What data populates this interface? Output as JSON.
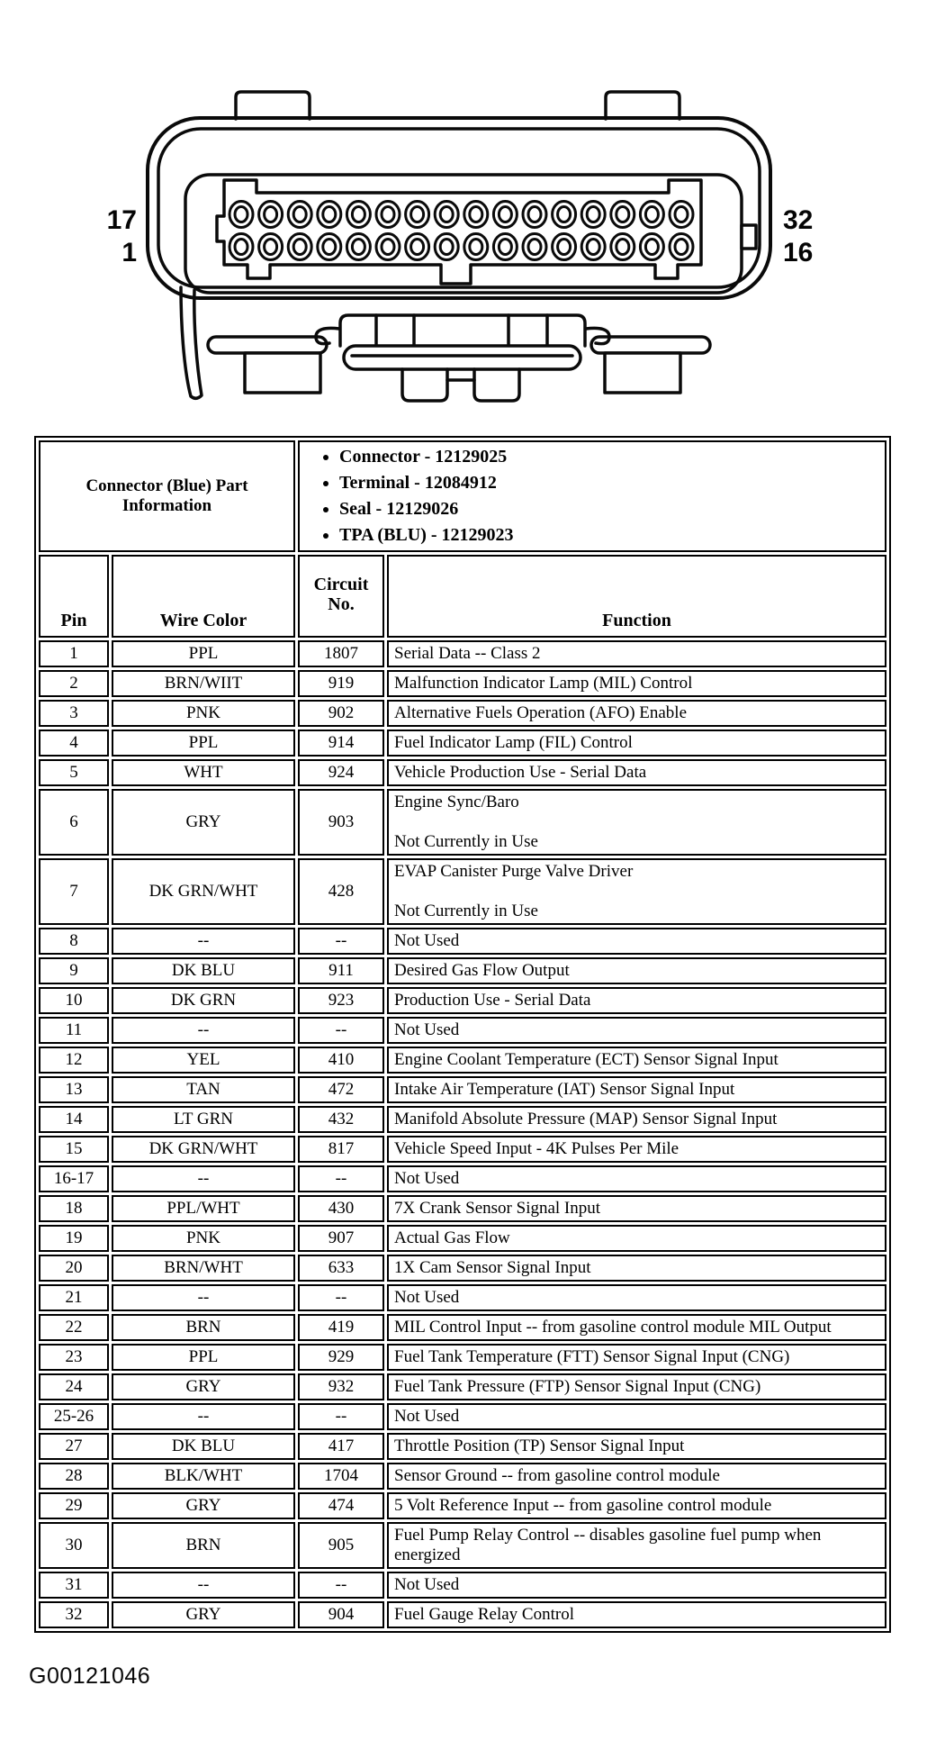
{
  "diagram": {
    "description": "32-pin connector face view, two rows of 16 cavities",
    "pins_per_row": 16,
    "pin_labels": {
      "top_left": "17",
      "bottom_left": "1",
      "top_right": "32",
      "bottom_right": "16"
    }
  },
  "part_info": {
    "title": "Connector (Blue) Part Information",
    "bullets": [
      "Connector - 12129025",
      "Terminal - 12084912",
      "Seal - 12129026",
      "TPA (BLU) - 12129023"
    ]
  },
  "table": {
    "headers": {
      "pin": "Pin",
      "wire_color": "Wire Color",
      "circuit": "Circuit No.",
      "function": "Function"
    },
    "rows": [
      {
        "pin": "1",
        "wire": "PPL",
        "circuit": "1807",
        "function": "Serial Data -- Class 2"
      },
      {
        "pin": "2",
        "wire": "BRN/WIIT",
        "circuit": "919",
        "function": "Malfunction Indicator Lamp (MIL) Control"
      },
      {
        "pin": "3",
        "wire": "PNK",
        "circuit": "902",
        "function": "Alternative Fuels Operation (AFO) Enable"
      },
      {
        "pin": "4",
        "wire": "PPL",
        "circuit": "914",
        "function": "Fuel Indicator Lamp (FIL) Control"
      },
      {
        "pin": "5",
        "wire": "WHT",
        "circuit": "924",
        "function": "Vehicle Production Use - Serial Data"
      },
      {
        "pin": "6",
        "wire": "GRY",
        "circuit": "903",
        "function": [
          "Engine Sync/Baro",
          "Not Currently in Use"
        ]
      },
      {
        "pin": "7",
        "wire": "DK GRN/WHT",
        "circuit": "428",
        "function": [
          "EVAP Canister Purge Valve Driver",
          "Not Currently in Use"
        ]
      },
      {
        "pin": "8",
        "wire": "--",
        "circuit": "--",
        "function": "Not Used"
      },
      {
        "pin": "9",
        "wire": "DK BLU",
        "circuit": "911",
        "function": "Desired Gas Flow Output"
      },
      {
        "pin": "10",
        "wire": "DK GRN",
        "circuit": "923",
        "function": "Production Use - Serial Data"
      },
      {
        "pin": "11",
        "wire": "--",
        "circuit": "--",
        "function": "Not Used"
      },
      {
        "pin": "12",
        "wire": "YEL",
        "circuit": "410",
        "function": "Engine Coolant Temperature (ECT) Sensor Signal Input"
      },
      {
        "pin": "13",
        "wire": "TAN",
        "circuit": "472",
        "function": "Intake Air Temperature (IAT) Sensor Signal Input"
      },
      {
        "pin": "14",
        "wire": "LT GRN",
        "circuit": "432",
        "function": "Manifold Absolute Pressure (MAP) Sensor Signal Input"
      },
      {
        "pin": "15",
        "wire": "DK GRN/WHT",
        "circuit": "817",
        "function": "Vehicle Speed Input - 4K Pulses Per Mile"
      },
      {
        "pin": "16-17",
        "wire": "--",
        "circuit": "--",
        "function": "Not Used"
      },
      {
        "pin": "18",
        "wire": "PPL/WHT",
        "circuit": "430",
        "function": "7X Crank Sensor Signal Input"
      },
      {
        "pin": "19",
        "wire": "PNK",
        "circuit": "907",
        "function": "Actual Gas Flow"
      },
      {
        "pin": "20",
        "wire": "BRN/WHT",
        "circuit": "633",
        "function": "1X Cam Sensor Signal Input"
      },
      {
        "pin": "21",
        "wire": "--",
        "circuit": "--",
        "function": "Not Used"
      },
      {
        "pin": "22",
        "wire": "BRN",
        "circuit": "419",
        "function": "MIL Control Input -- from gasoline control module MIL Output"
      },
      {
        "pin": "23",
        "wire": "PPL",
        "circuit": "929",
        "function": "Fuel Tank Temperature (FTT) Sensor Signal Input (CNG)"
      },
      {
        "pin": "24",
        "wire": "GRY",
        "circuit": "932",
        "function": "Fuel Tank Pressure (FTP) Sensor Signal Input (CNG)"
      },
      {
        "pin": "25-26",
        "wire": "--",
        "circuit": "--",
        "function": "Not Used"
      },
      {
        "pin": "27",
        "wire": "DK BLU",
        "circuit": "417",
        "function": "Throttle Position (TP) Sensor Signal Input"
      },
      {
        "pin": "28",
        "wire": "BLK/WHT",
        "circuit": "1704",
        "function": "Sensor Ground -- from gasoline control module"
      },
      {
        "pin": "29",
        "wire": "GRY",
        "circuit": "474",
        "function": "5 Volt Reference Input -- from gasoline control module"
      },
      {
        "pin": "30",
        "wire": "BRN",
        "circuit": "905",
        "function": "Fuel Pump Relay Control -- disables gasoline fuel pump when energized"
      },
      {
        "pin": "31",
        "wire": "--",
        "circuit": "--",
        "function": "Not Used"
      },
      {
        "pin": "32",
        "wire": "GRY",
        "circuit": "904",
        "function": "Fuel Gauge Relay Control"
      }
    ]
  },
  "figure_id": "G00121046"
}
